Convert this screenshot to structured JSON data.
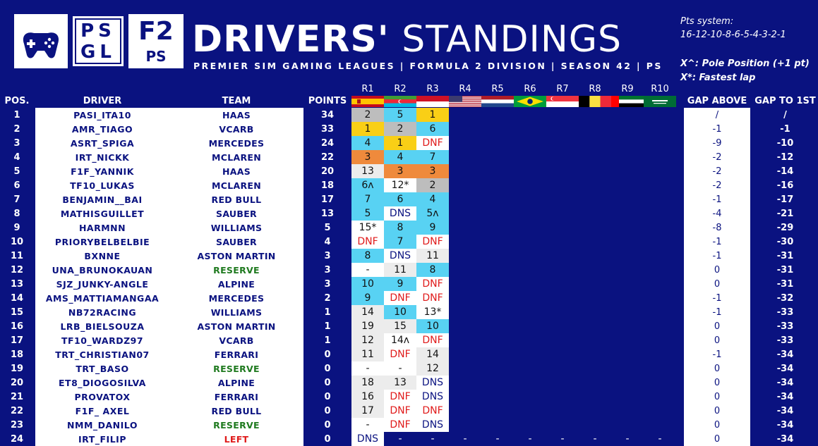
{
  "header": {
    "logo_psgl_line1": "PS",
    "logo_psgl_line2": "GL",
    "logo_f2": "F2",
    "logo_ps": "PS",
    "title_bold": "DRIVERS'",
    "title_light": "STANDINGS",
    "subtitle": "PREMIER SIM GAMING LEAGUES | FORMULA 2 DIVISION | SEASON 42 | PS"
  },
  "legend": {
    "pts_label": "Pts system:",
    "pts_value": "16-12-10-8-6-5-4-3-2-1",
    "pole_note": "X^: Pole Position (+1 pt)",
    "fastest_note": "X*: Fastest lap"
  },
  "columns": {
    "pos": "POS.",
    "driver": "DRIVER",
    "team": "TEAM",
    "points": "POINTS",
    "gap_above": "GAP ABOVE",
    "gap_first": "GAP TO 1ST"
  },
  "rounds": [
    "R1",
    "R2",
    "R3",
    "R4",
    "R5",
    "R6",
    "R7",
    "R8",
    "R9",
    "R10"
  ],
  "flags": [
    "spain-flag",
    "azerbaijan-flag",
    "monaco-flag",
    "usa-flag",
    "netherlands-flag",
    "brazil-flag",
    "singapore-flag",
    "belgium-flag",
    "uae-flag",
    "saudi-arabia-flag"
  ],
  "colors": {
    "background": "#0a1280",
    "first": "#f9cf16",
    "second": "#bdbdbd",
    "third": "#ef8a3c",
    "points": "#58d2f3",
    "no_points": "#ececec",
    "dnf": "#e01b1b",
    "reserve": "#1f7a1f"
  },
  "standings": [
    {
      "pos": "1",
      "driver": "PASI_ITA10",
      "team": "HAAS",
      "team_status": "",
      "points": "34",
      "results": [
        [
          "2",
          "silver"
        ],
        [
          "5",
          "points"
        ],
        [
          "1",
          "gold"
        ]
      ],
      "gap_above": "/",
      "gap_first": "/"
    },
    {
      "pos": "2",
      "driver": "AMR_TIAGO",
      "team": "VCARB",
      "team_status": "",
      "points": "33",
      "results": [
        [
          "1",
          "gold"
        ],
        [
          "2",
          "silver"
        ],
        [
          "6",
          "points"
        ]
      ],
      "gap_above": "-1",
      "gap_first": "-1"
    },
    {
      "pos": "3",
      "driver": "ASRT_SPIGA",
      "team": "MERCEDES",
      "team_status": "",
      "points": "24",
      "results": [
        [
          "4",
          "points"
        ],
        [
          "1",
          "gold"
        ],
        [
          "DNF",
          "dnf"
        ]
      ],
      "gap_above": "-9",
      "gap_first": "-10"
    },
    {
      "pos": "4",
      "driver": "IRT_NICKK",
      "team": "MCLAREN",
      "team_status": "",
      "points": "22",
      "results": [
        [
          "3",
          "bronze"
        ],
        [
          "4",
          "points"
        ],
        [
          "7",
          "points"
        ]
      ],
      "gap_above": "-2",
      "gap_first": "-12"
    },
    {
      "pos": "5",
      "driver": "F1F_YANNIK",
      "team": "HAAS",
      "team_status": "",
      "points": "20",
      "results": [
        [
          "13",
          "nopts"
        ],
        [
          "3",
          "bronze"
        ],
        [
          "3",
          "bronze"
        ]
      ],
      "gap_above": "-2",
      "gap_first": "-14"
    },
    {
      "pos": "6",
      "driver": "TF10_LUKAS",
      "team": "MCLAREN",
      "team_status": "",
      "points": "18",
      "results": [
        [
          "6^",
          "points"
        ],
        [
          "12*",
          "blank"
        ],
        [
          "2",
          "silver"
        ]
      ],
      "gap_above": "-2",
      "gap_first": "-16"
    },
    {
      "pos": "7",
      "driver": "BENJAMIN__BAI",
      "team": "RED BULL",
      "team_status": "",
      "points": "17",
      "results": [
        [
          "7",
          "points"
        ],
        [
          "6",
          "points"
        ],
        [
          "4",
          "points"
        ]
      ],
      "gap_above": "-1",
      "gap_first": "-17"
    },
    {
      "pos": "8",
      "driver": "MATHISGUILLET",
      "team": "SAUBER",
      "team_status": "",
      "points": "13",
      "results": [
        [
          "5",
          "points"
        ],
        [
          "DNS",
          "dns"
        ],
        [
          "5^",
          "points"
        ]
      ],
      "gap_above": "-4",
      "gap_first": "-21"
    },
    {
      "pos": "9",
      "driver": "HARMNN",
      "team": "WILLIAMS",
      "team_status": "",
      "points": "5",
      "results": [
        [
          "15*",
          "blank"
        ],
        [
          "8",
          "points"
        ],
        [
          "9",
          "points"
        ]
      ],
      "gap_above": "-8",
      "gap_first": "-29"
    },
    {
      "pos": "10",
      "driver": "PRIORYBELBELBIE",
      "team": "SAUBER",
      "team_status": "",
      "points": "4",
      "results": [
        [
          "DNF",
          "dnf"
        ],
        [
          "7",
          "points"
        ],
        [
          "DNF",
          "dnf"
        ]
      ],
      "gap_above": "-1",
      "gap_first": "-30"
    },
    {
      "pos": "11",
      "driver": "BXNNE",
      "team": "ASTON MARTIN",
      "team_status": "",
      "points": "3",
      "results": [
        [
          "8",
          "points"
        ],
        [
          "DNS",
          "dns"
        ],
        [
          "11",
          "nopts"
        ]
      ],
      "gap_above": "-1",
      "gap_first": "-31"
    },
    {
      "pos": "12",
      "driver": "UNA_BRUNOKAUAN",
      "team": "RESERVE",
      "team_status": "reserve",
      "points": "3",
      "results": [
        [
          "-",
          "blank"
        ],
        [
          "11",
          "nopts"
        ],
        [
          "8",
          "points"
        ]
      ],
      "gap_above": "0",
      "gap_first": "-31"
    },
    {
      "pos": "13",
      "driver": "SJZ_JUNKY-ANGLE",
      "team": "ALPINE",
      "team_status": "",
      "points": "3",
      "results": [
        [
          "10",
          "points"
        ],
        [
          "9",
          "points"
        ],
        [
          "DNF",
          "dnf"
        ]
      ],
      "gap_above": "0",
      "gap_first": "-31"
    },
    {
      "pos": "14",
      "driver": "AMS_MATTIAMANGAA",
      "team": "MERCEDES",
      "team_status": "",
      "points": "2",
      "results": [
        [
          "9",
          "points"
        ],
        [
          "DNF",
          "dnf"
        ],
        [
          "DNF",
          "dnf"
        ]
      ],
      "gap_above": "-1",
      "gap_first": "-32"
    },
    {
      "pos": "15",
      "driver": "NB72RACING",
      "team": "WILLIAMS",
      "team_status": "",
      "points": "1",
      "results": [
        [
          "14",
          "nopts"
        ],
        [
          "10",
          "points"
        ],
        [
          "13*",
          "blank"
        ]
      ],
      "gap_above": "-1",
      "gap_first": "-33"
    },
    {
      "pos": "16",
      "driver": "LRB_BIELSOUZA",
      "team": "ASTON MARTIN",
      "team_status": "",
      "points": "1",
      "results": [
        [
          "19",
          "nopts"
        ],
        [
          "15",
          "nopts"
        ],
        [
          "10",
          "points"
        ]
      ],
      "gap_above": "0",
      "gap_first": "-33"
    },
    {
      "pos": "17",
      "driver": "TF10_WARDZ97",
      "team": "VCARB",
      "team_status": "",
      "points": "1",
      "results": [
        [
          "12",
          "nopts"
        ],
        [
          "14^",
          "blank"
        ],
        [
          "DNF",
          "dnf"
        ]
      ],
      "gap_above": "0",
      "gap_first": "-33"
    },
    {
      "pos": "18",
      "driver": "TRT_CHRISTIAN07",
      "team": "FERRARI",
      "team_status": "",
      "points": "0",
      "results": [
        [
          "11",
          "nopts"
        ],
        [
          "DNF",
          "dnf"
        ],
        [
          "14",
          "nopts"
        ]
      ],
      "gap_above": "-1",
      "gap_first": "-34"
    },
    {
      "pos": "19",
      "driver": "TRT_BASO",
      "team": "RESERVE",
      "team_status": "reserve",
      "points": "0",
      "results": [
        [
          "-",
          "blank"
        ],
        [
          "-",
          "blank"
        ],
        [
          "12",
          "nopts"
        ]
      ],
      "gap_above": "0",
      "gap_first": "-34"
    },
    {
      "pos": "20",
      "driver": "ET8_DIOGOSILVA",
      "team": "ALPINE",
      "team_status": "",
      "points": "0",
      "results": [
        [
          "18",
          "nopts"
        ],
        [
          "13",
          "nopts"
        ],
        [
          "DNS",
          "dns"
        ]
      ],
      "gap_above": "0",
      "gap_first": "-34"
    },
    {
      "pos": "21",
      "driver": "PROVATOX",
      "team": "FERRARI",
      "team_status": "",
      "points": "0",
      "results": [
        [
          "16",
          "nopts"
        ],
        [
          "DNF",
          "dnf"
        ],
        [
          "DNS",
          "dns"
        ]
      ],
      "gap_above": "0",
      "gap_first": "-34"
    },
    {
      "pos": "22",
      "driver": "F1F_ AXEL",
      "team": "RED BULL",
      "team_status": "",
      "points": "0",
      "results": [
        [
          "17",
          "nopts"
        ],
        [
          "DNF",
          "dnf"
        ],
        [
          "DNF",
          "dnf"
        ]
      ],
      "gap_above": "0",
      "gap_first": "-34"
    },
    {
      "pos": "23",
      "driver": "NMM_DANILO",
      "team": "RESERVE",
      "team_status": "reserve",
      "points": "0",
      "results": [
        [
          "-",
          "blank"
        ],
        [
          "DNF",
          "dnf"
        ],
        [
          "DNS",
          "dns"
        ]
      ],
      "gap_above": "0",
      "gap_first": "-34"
    },
    {
      "pos": "24",
      "driver": "IRT_FILIP",
      "team": "LEFT",
      "team_status": "left",
      "points": "0",
      "results": [
        [
          "DNS",
          "dns"
        ],
        [
          "-",
          "none"
        ],
        [
          "-",
          "none"
        ],
        [
          "-",
          "none"
        ],
        [
          "-",
          "none"
        ],
        [
          "-",
          "none"
        ],
        [
          "-",
          "none"
        ],
        [
          "-",
          "none"
        ],
        [
          "-",
          "none"
        ],
        [
          "-",
          "none"
        ]
      ],
      "gap_above": "0",
      "gap_first": "-34"
    }
  ]
}
